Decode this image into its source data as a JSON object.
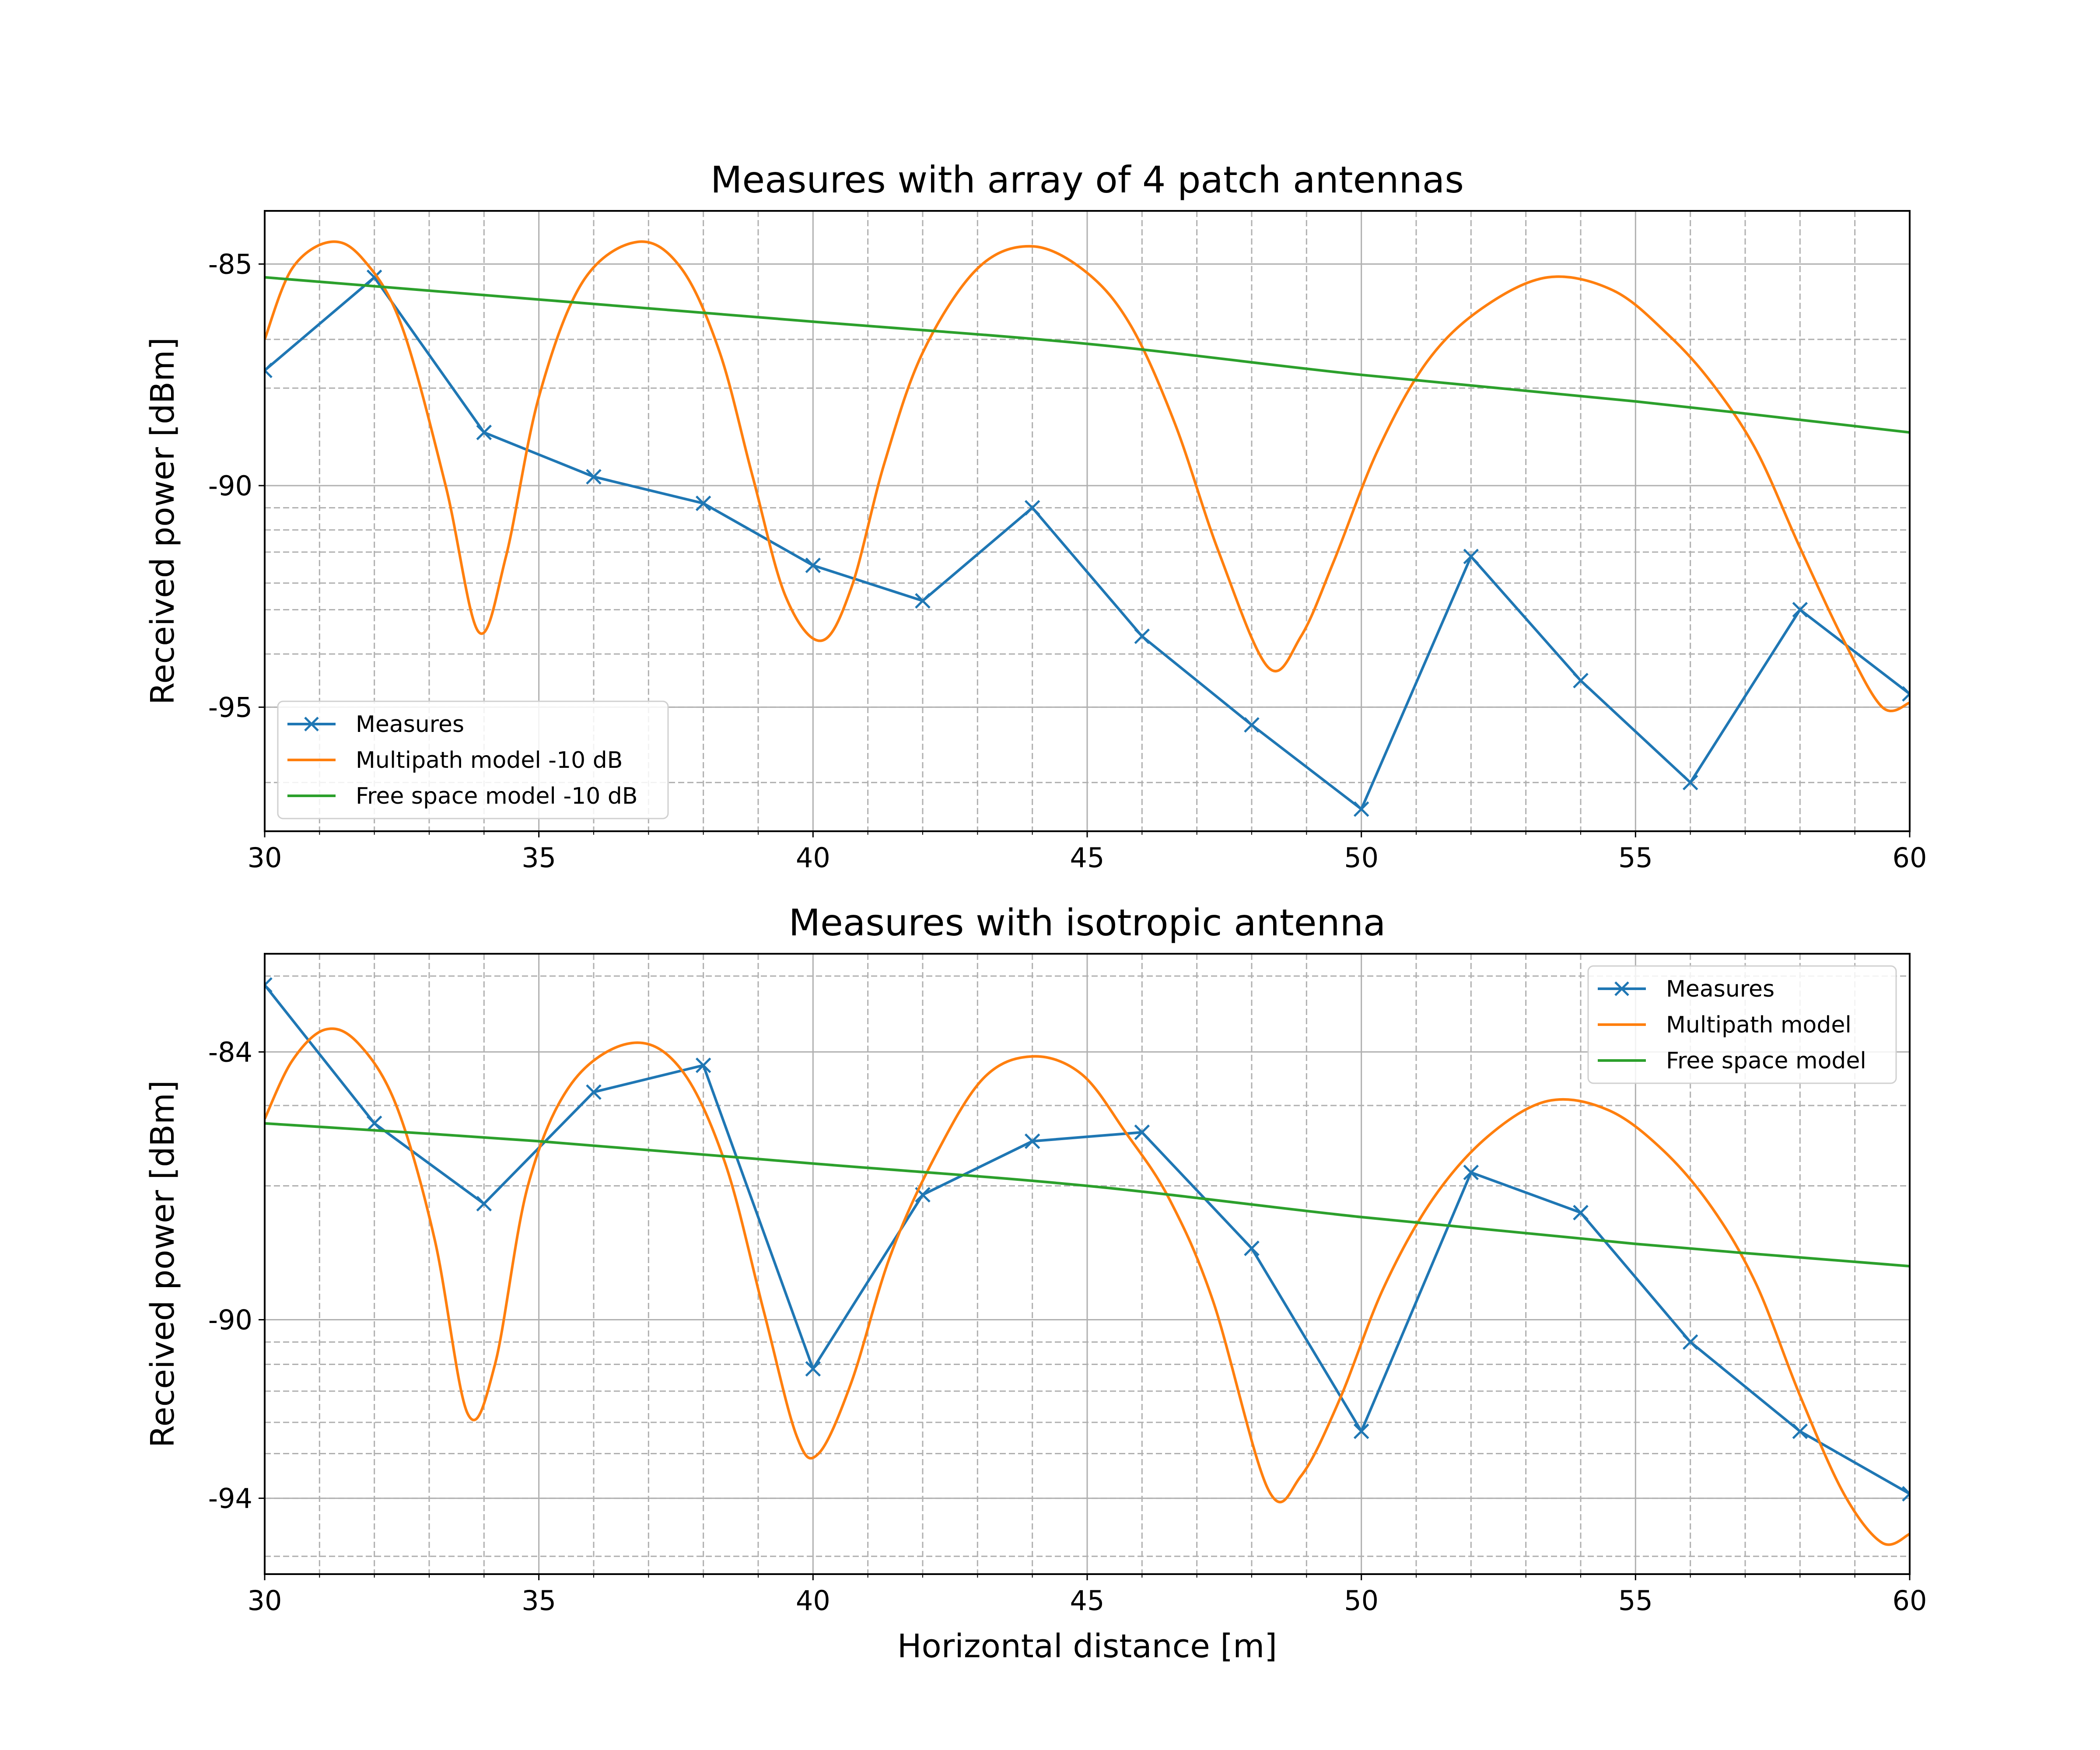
{
  "chart_data": [
    {
      "type": "line",
      "title": "Measures with array of 4 patch antennas",
      "xlabel": "",
      "ylabel": "Received power [dBm]",
      "xlim": [
        30,
        60
      ],
      "ylim": [
        -97.8,
        -83.8
      ],
      "xticks": [
        30,
        35,
        40,
        45,
        50,
        55,
        60
      ],
      "xtick_labels": [
        "30",
        "35",
        "40",
        "45",
        "50",
        "55",
        "60"
      ],
      "yticks": [
        -85,
        -90,
        -95
      ],
      "ytick_labels": [
        "-85",
        "-90",
        "-95"
      ],
      "x_minor_grid": [
        31,
        32,
        33,
        34,
        36,
        37,
        38,
        39,
        41,
        42,
        43,
        44,
        46,
        47,
        48,
        49,
        51,
        52,
        53,
        54,
        56,
        57,
        58,
        59
      ],
      "y_minor_grid": [
        -85,
        -86.7,
        -87.8,
        -90.5,
        -91,
        -91.5,
        -92.2,
        -92.8,
        -93.8,
        -95,
        -96.7
      ],
      "grid": true,
      "legend_placement": "lower-left",
      "series": [
        {
          "name": "Measures",
          "color": "#1f77b4",
          "marker": "x",
          "x": [
            30,
            32,
            34,
            36,
            38,
            40,
            42,
            44,
            46,
            48,
            50,
            52,
            54,
            56,
            58,
            60
          ],
          "y": [
            -87.4,
            -85.3,
            -88.8,
            -89.8,
            -90.4,
            -91.8,
            -92.6,
            -90.5,
            -93.4,
            -95.4,
            -97.3,
            -91.6,
            -94.4,
            -96.7,
            -92.8,
            -94.7
          ]
        },
        {
          "name": "Multipath model -10 dB",
          "color": "#ff7f0e",
          "marker": "",
          "x": [
            30,
            30.5,
            31.2,
            31.8,
            32.5,
            33.3,
            33.9,
            34.4,
            35,
            35.8,
            36.8,
            37.6,
            38.3,
            38.9,
            39.5,
            40.15,
            40.7,
            41.3,
            42,
            43,
            44,
            45,
            45.8,
            46.6,
            47.4,
            48.3,
            48.9,
            49.5,
            50.3,
            51.2,
            52.2,
            53.4,
            54.6,
            55.6,
            56.4,
            57.2,
            58,
            58.8,
            59.5,
            60
          ],
          "y": [
            -86.7,
            -85.1,
            -84.5,
            -84.9,
            -86.4,
            -90.0,
            -93.3,
            -91.6,
            -88.0,
            -85.4,
            -84.5,
            -85.1,
            -87.0,
            -89.8,
            -92.5,
            -93.5,
            -92.3,
            -89.5,
            -87.0,
            -85.1,
            -84.6,
            -85.2,
            -86.4,
            -88.6,
            -91.5,
            -94.1,
            -93.4,
            -91.7,
            -89.2,
            -87.2,
            -86.0,
            -85.3,
            -85.6,
            -86.6,
            -87.7,
            -89.2,
            -91.4,
            -93.5,
            -95.0,
            -94.9
          ]
        },
        {
          "name": "Free space model -10 dB",
          "color": "#2ca02c",
          "marker": "",
          "x": [
            30,
            35,
            40,
            45,
            50,
            55,
            60
          ],
          "y": [
            -85.3,
            -85.8,
            -86.3,
            -86.8,
            -87.5,
            -88.1,
            -88.8
          ]
        }
      ]
    },
    {
      "type": "line",
      "title": "Measures with isotropic antenna",
      "xlabel": "Horizontal distance [m]",
      "ylabel": "Received power [dBm]",
      "xlim": [
        30,
        60
      ],
      "ylim": [
        -95.7,
        -81.8
      ],
      "xticks": [
        30,
        35,
        40,
        45,
        50,
        55,
        60
      ],
      "xtick_labels": [
        "30",
        "35",
        "40",
        "45",
        "50",
        "55",
        "60"
      ],
      "yticks": [
        -84,
        -90,
        -94
      ],
      "ytick_labels": [
        "-84",
        "-90",
        "-94"
      ],
      "x_minor_grid": [
        31,
        32,
        33,
        34,
        36,
        37,
        38,
        39,
        41,
        42,
        43,
        44,
        46,
        47,
        48,
        49,
        51,
        52,
        53,
        54,
        56,
        57,
        58,
        59
      ],
      "y_minor_grid": [
        -82.3,
        -85.2,
        -87,
        -90.5,
        -91,
        -91.6,
        -92.3,
        -93,
        -94,
        -95.3
      ],
      "grid": true,
      "legend_placement": "upper-right",
      "series": [
        {
          "name": "Measures",
          "color": "#1f77b4",
          "marker": "x",
          "x": [
            30,
            32,
            34,
            36,
            38,
            40,
            42,
            44,
            46,
            48,
            50,
            52,
            54,
            56,
            58,
            60
          ],
          "y": [
            -82.5,
            -85.6,
            -87.4,
            -84.9,
            -84.3,
            -91.1,
            -87.2,
            -86.0,
            -85.8,
            -88.4,
            -92.5,
            -86.7,
            -87.6,
            -90.5,
            -92.5,
            -93.9
          ]
        },
        {
          "name": "Multipath model",
          "color": "#ff7f0e",
          "marker": "",
          "x": [
            30,
            30.5,
            31.1,
            31.7,
            32.4,
            33.1,
            33.7,
            34.2,
            34.8,
            35.6,
            36.7,
            37.6,
            38.4,
            39.1,
            39.7,
            40.1,
            40.7,
            41.4,
            42.2,
            43.1,
            44,
            44.9,
            45.7,
            46.5,
            47.3,
            48.3,
            48.9,
            49.6,
            50.4,
            51.3,
            52.3,
            53.4,
            54.5,
            55.5,
            56.4,
            57.2,
            58.0,
            58.8,
            59.5,
            60
          ],
          "y": [
            -85.5,
            -84.2,
            -83.5,
            -83.8,
            -85.2,
            -88.2,
            -92.1,
            -91.0,
            -87.0,
            -84.7,
            -83.8,
            -84.4,
            -86.5,
            -89.8,
            -92.6,
            -93.0,
            -91.4,
            -88.6,
            -86.4,
            -84.6,
            -84.1,
            -84.5,
            -85.8,
            -87.3,
            -89.6,
            -93.8,
            -93.5,
            -91.8,
            -89.3,
            -87.3,
            -85.9,
            -85.1,
            -85.3,
            -86.2,
            -87.5,
            -89.2,
            -91.7,
            -93.9,
            -95.0,
            -94.8
          ]
        },
        {
          "name": "Free space model",
          "color": "#2ca02c",
          "marker": "",
          "x": [
            30,
            35,
            40,
            45,
            50,
            55,
            60
          ],
          "y": [
            -85.6,
            -86.0,
            -86.5,
            -87.0,
            -87.7,
            -88.3,
            -88.8
          ]
        }
      ]
    }
  ]
}
